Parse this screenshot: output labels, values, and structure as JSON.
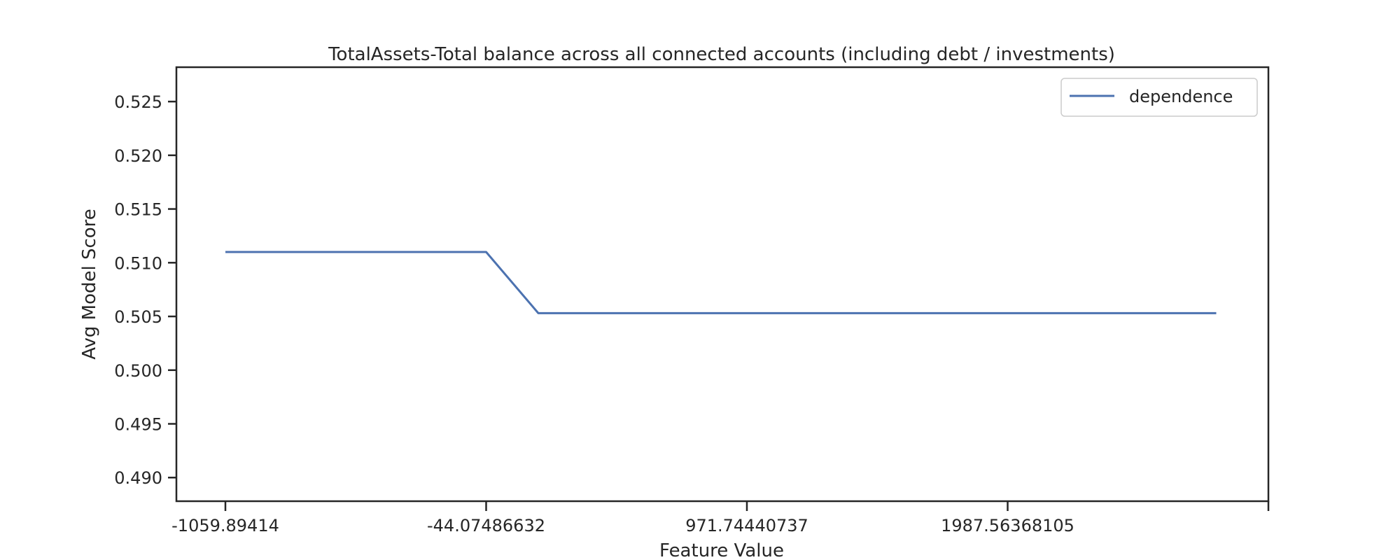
{
  "chart_data": {
    "type": "line",
    "title": "TotalAssets-Total balance across all connected accounts (including debt / investments)",
    "xlabel": "Feature Value",
    "ylabel": "Avg Model Score",
    "x_tick_labels": [
      "-1059.89414",
      "-44.07486632",
      "971.74440737",
      "1987.56368105"
    ],
    "x": [
      0,
      1,
      2,
      3,
      4,
      5,
      6,
      7,
      8,
      9,
      10,
      11,
      12,
      13,
      14,
      15,
      16,
      17,
      18,
      19
    ],
    "series": [
      {
        "name": "dependence",
        "color": "#4c72b0",
        "values": [
          0.511,
          0.511,
          0.511,
          0.511,
          0.511,
          0.511,
          0.5053,
          0.5053,
          0.5053,
          0.5053,
          0.5053,
          0.5053,
          0.5053,
          0.5053,
          0.5053,
          0.5053,
          0.5053,
          0.5053,
          0.5053,
          0.5053
        ]
      }
    ],
    "ylim": [
      0.4878,
      0.5282
    ],
    "y_ticks": [
      0.49,
      0.495,
      0.5,
      0.505,
      0.51,
      0.515,
      0.52,
      0.525
    ],
    "y_tick_labels": [
      "0.490",
      "0.495",
      "0.500",
      "0.505",
      "0.510",
      "0.515",
      "0.520",
      "0.525"
    ],
    "legend": {
      "position": "top-right",
      "labels": [
        "dependence"
      ]
    },
    "grid": false
  }
}
